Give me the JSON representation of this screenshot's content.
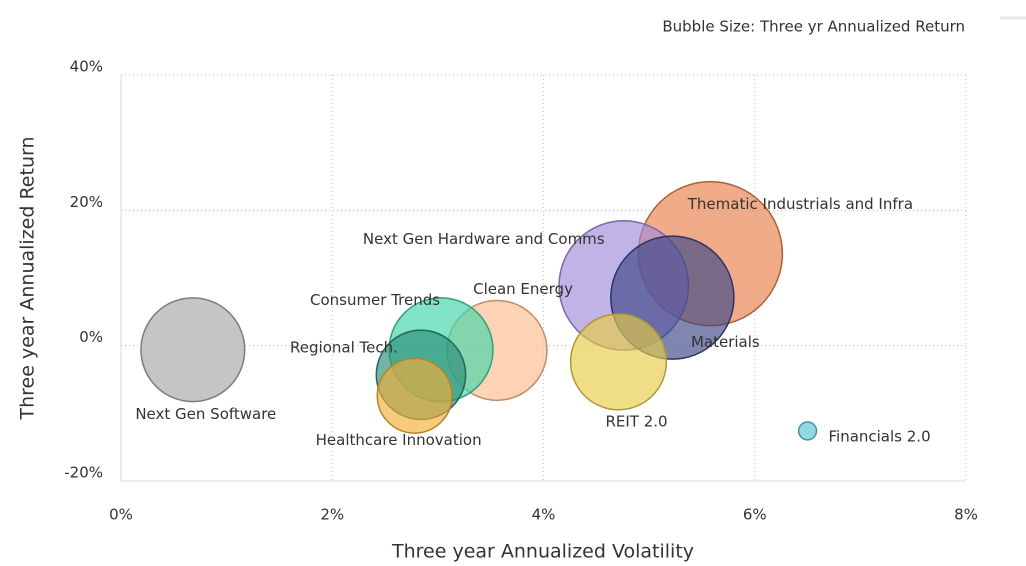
{
  "chart_data": {
    "type": "bubble",
    "subtitle": "Bubble Size: Three yr Annualized Return",
    "x_label": "Three year Annualized Volatility",
    "y_label": "Three year Annualized Return",
    "xlim": [
      0,
      8
    ],
    "ylim": [
      -20,
      40
    ],
    "xticks": [
      {
        "value": 0,
        "label": "0%"
      },
      {
        "value": 2,
        "label": "2%"
      },
      {
        "value": 4,
        "label": "4%"
      },
      {
        "value": 6,
        "label": "6%"
      },
      {
        "value": 8,
        "label": "8%"
      }
    ],
    "yticks": [
      {
        "value": -20,
        "label": "-20%"
      },
      {
        "value": 0,
        "label": "0%"
      },
      {
        "value": 20,
        "label": "20%"
      },
      {
        "value": 40,
        "label": "40%"
      }
    ],
    "grid": true,
    "series": [
      {
        "name": "Next Gen Software",
        "color": "#a6a6a6",
        "x": [
          0.68
        ],
        "values": [
          -0.6
        ],
        "size": [
          27
        ]
      },
      {
        "name": "Thematic Industrials and Infra",
        "color": "#e8804a",
        "x": [
          5.58
        ],
        "values": [
          13.6
        ],
        "size": [
          52
        ]
      },
      {
        "name": "Next Gen Hardware and Comms",
        "color": "#a28ad8",
        "x": [
          4.76
        ],
        "values": [
          8.9
        ],
        "size": [
          42
        ]
      },
      {
        "name": "Materials",
        "color": "#3a4585",
        "x": [
          5.22
        ],
        "values": [
          7.1
        ],
        "size": [
          38
        ]
      },
      {
        "name": "Clean Energy",
        "color": "#fdbb8e",
        "x": [
          3.56
        ],
        "values": [
          -0.7
        ],
        "size": [
          25
        ]
      },
      {
        "name": "Consumer Trends",
        "color": "#3fd6a8",
        "x": [
          3.03
        ],
        "values": [
          -0.6
        ],
        "size": [
          27
        ]
      },
      {
        "name": "Regional Tech.",
        "color": "#2a8c78",
        "x": [
          2.84
        ],
        "values": [
          -4.3
        ],
        "size": [
          20
        ]
      },
      {
        "name": "Healthcare Innovation",
        "color": "#f5ad35",
        "x": [
          2.78
        ],
        "values": [
          -7.4
        ],
        "size": [
          14
        ]
      },
      {
        "name": "REIT 2.0",
        "color": "#e6cd45",
        "x": [
          4.71
        ],
        "values": [
          -2.4
        ],
        "size": [
          23
        ]
      },
      {
        "name": "Financials 2.0",
        "color": "#56c3da",
        "x": [
          6.5
        ],
        "values": [
          -12.6
        ],
        "size": [
          0.8
        ]
      }
    ]
  }
}
